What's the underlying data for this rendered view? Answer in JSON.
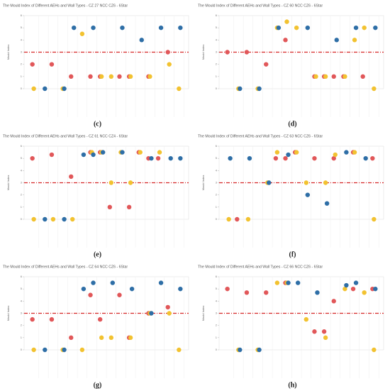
{
  "chart_data": [
    {
      "type": "dot",
      "title": "The Mould Index of Different AEHs and Wall Types - CZ 27 NCC CZ6 - 6Star",
      "label": "(c)",
      "y_label": "Mould Index",
      "x": [
        1,
        2,
        3,
        4,
        5,
        6,
        7,
        8,
        9,
        10,
        11,
        12,
        13,
        14,
        15,
        16
      ],
      "xlim": [
        0,
        17
      ],
      "ylim": [
        0,
        6
      ],
      "yticks": [
        0,
        1,
        2,
        3,
        4,
        5,
        6
      ],
      "threshold": 3,
      "threshold_color": "#d62728",
      "series": [
        {
          "color": "#e15759",
          "values": [
            2,
            null,
            2,
            null,
            1,
            null,
            1,
            1,
            null,
            1,
            1,
            null,
            1,
            null,
            3,
            null
          ]
        },
        {
          "color": "#f2c230",
          "values": [
            0,
            null,
            null,
            0,
            null,
            4.5,
            null,
            1,
            1,
            null,
            1,
            null,
            1,
            null,
            2,
            0
          ]
        },
        {
          "color": "#2e6ea6",
          "values": [
            null,
            0,
            null,
            0,
            5,
            null,
            5,
            null,
            null,
            5,
            null,
            4,
            null,
            5,
            null,
            5
          ]
        }
      ]
    },
    {
      "type": "dot",
      "title": "The Mould Index of Different AEHs and Wall Types - CZ 60 NCC CZ6 - 6Star",
      "label": "(d)",
      "y_label": "Mould Index",
      "x": [
        1,
        2,
        3,
        4,
        5,
        6,
        7,
        8,
        9,
        10,
        11,
        12,
        13,
        14,
        15,
        16
      ],
      "xlim": [
        0,
        17
      ],
      "ylim": [
        0,
        6
      ],
      "yticks": [
        0,
        1,
        2,
        3,
        4,
        5,
        6
      ],
      "threshold": 3,
      "threshold_color": "#d62728",
      "series": [
        {
          "color": "#e15759",
          "values": [
            3,
            null,
            3,
            null,
            2,
            null,
            4,
            null,
            null,
            1,
            1,
            1,
            1,
            null,
            1,
            null
          ]
        },
        {
          "color": "#f2c230",
          "values": [
            null,
            0,
            null,
            0,
            null,
            5,
            5.5,
            5,
            null,
            1,
            1,
            null,
            1,
            4,
            5,
            0
          ]
        },
        {
          "color": "#2e6ea6",
          "values": [
            null,
            0,
            null,
            0,
            null,
            5,
            null,
            null,
            5,
            null,
            null,
            4,
            null,
            5,
            null,
            5
          ]
        }
      ]
    },
    {
      "type": "dot",
      "title": "The Mould Index of Different AEHs and Wall Types - CZ 61 NCC CZ4 - 6Star",
      "label": "(e)",
      "y_label": "Mould Index",
      "x": [
        1,
        2,
        3,
        4,
        5,
        6,
        7,
        8,
        9,
        10,
        11,
        12,
        13,
        14,
        15,
        16
      ],
      "xlim": [
        0,
        17
      ],
      "ylim": [
        0,
        6
      ],
      "yticks": [
        0,
        1,
        2,
        3,
        4,
        5,
        6
      ],
      "threshold": 3,
      "threshold_color": "#d62728",
      "series": [
        {
          "color": "#e15759",
          "values": [
            5,
            null,
            5.3,
            null,
            3.5,
            null,
            5.5,
            5.5,
            1,
            null,
            1,
            5.5,
            5,
            5,
            null,
            null
          ]
        },
        {
          "color": "#f2c230",
          "values": [
            0,
            null,
            0,
            null,
            0,
            null,
            5.5,
            5.5,
            3,
            5.5,
            3,
            5.5,
            null,
            5.5,
            null,
            null
          ]
        },
        {
          "color": "#2e6ea6",
          "values": [
            null,
            0,
            null,
            0,
            null,
            5.3,
            5.3,
            5.5,
            null,
            5.5,
            null,
            null,
            5,
            null,
            5,
            5
          ]
        }
      ]
    },
    {
      "type": "dot",
      "title": "The Mould Index of Different AEHs and Wall Types - CZ 63 NCC CZ6 - 6Star",
      "label": "(f)",
      "y_label": "Mould Index",
      "x": [
        1,
        2,
        3,
        4,
        5,
        6,
        7,
        8,
        9,
        10,
        11,
        12,
        13,
        14,
        15,
        16
      ],
      "xlim": [
        0,
        17
      ],
      "ylim": [
        0,
        6
      ],
      "yticks": [
        0,
        1,
        2,
        3,
        4,
        5,
        6
      ],
      "threshold": 3,
      "threshold_color": "#d62728",
      "series": [
        {
          "color": "#e15759",
          "values": [
            null,
            0,
            null,
            null,
            null,
            5,
            5,
            5.5,
            null,
            5,
            null,
            5,
            null,
            5.5,
            null,
            5
          ]
        },
        {
          "color": "#f2c230",
          "values": [
            0,
            null,
            0,
            null,
            3,
            5.5,
            null,
            5.5,
            3,
            null,
            3,
            5.3,
            null,
            5.5,
            null,
            0
          ]
        },
        {
          "color": "#2e6ea6",
          "values": [
            5,
            null,
            5,
            null,
            3,
            null,
            5.3,
            null,
            2,
            null,
            1.3,
            null,
            5.5,
            null,
            5,
            null
          ]
        }
      ]
    },
    {
      "type": "dot",
      "title": "The Mould Index of Different AEHs and Wall Types - CZ 64 NCC CZ6 - 6Star",
      "label": "(g)",
      "y_label": "Mould Index",
      "x": [
        1,
        2,
        3,
        4,
        5,
        6,
        7,
        8,
        9,
        10,
        11,
        12,
        13,
        14,
        15,
        16
      ],
      "xlim": [
        0,
        17
      ],
      "ylim": [
        0,
        6
      ],
      "yticks": [
        0,
        1,
        2,
        3,
        4,
        5,
        6
      ],
      "threshold": 3,
      "threshold_color": "#d62728",
      "series": [
        {
          "color": "#e15759",
          "values": [
            2.5,
            null,
            2.5,
            null,
            1,
            null,
            4.5,
            2.5,
            null,
            4.5,
            1,
            null,
            3,
            null,
            3.5,
            null
          ]
        },
        {
          "color": "#f2c230",
          "values": [
            0,
            null,
            null,
            0,
            null,
            0,
            null,
            1,
            1,
            null,
            1,
            null,
            3,
            null,
            3,
            0
          ]
        },
        {
          "color": "#2e6ea6",
          "values": [
            null,
            0,
            null,
            0,
            null,
            5,
            5.5,
            null,
            5.5,
            null,
            5,
            null,
            3,
            5.5,
            null,
            5
          ]
        }
      ]
    },
    {
      "type": "dot",
      "title": "The Mould Index of Different AEHs and Wall Types - CZ 66 NCC CZ6 - 6Star",
      "label": "(h)",
      "y_label": "Mould Index",
      "x": [
        1,
        2,
        3,
        4,
        5,
        6,
        7,
        8,
        9,
        10,
        11,
        12,
        13,
        14,
        15,
        16
      ],
      "xlim": [
        0,
        17
      ],
      "ylim": [
        0,
        6
      ],
      "yticks": [
        0,
        1,
        2,
        3,
        4,
        5,
        6
      ],
      "threshold": 3,
      "threshold_color": "#d62728",
      "series": [
        {
          "color": "#e15759",
          "values": [
            5,
            null,
            4.7,
            null,
            4.7,
            null,
            5.5,
            null,
            null,
            1.5,
            1.5,
            4,
            null,
            5,
            null,
            5
          ]
        },
        {
          "color": "#f2c230",
          "values": [
            null,
            0,
            null,
            0,
            null,
            5.5,
            5.5,
            null,
            2.5,
            null,
            1,
            null,
            5,
            null,
            4.7,
            0
          ]
        },
        {
          "color": "#2e6ea6",
          "values": [
            null,
            0,
            null,
            0,
            null,
            null,
            5.5,
            5.5,
            null,
            4.7,
            null,
            null,
            5.3,
            5.5,
            null,
            5
          ]
        }
      ]
    }
  ]
}
